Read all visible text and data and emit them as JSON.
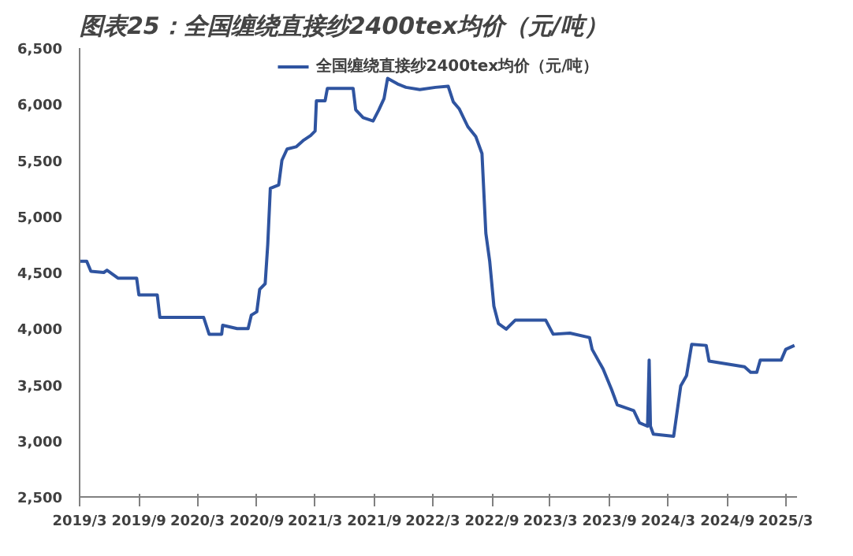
{
  "chart_data": {
    "type": "line",
    "title": "图表25：全国缠绕直接纱2400tex均价（元/吨）",
    "series": [
      {
        "name": "全国缠绕直接纱2400tex均价（元/吨）",
        "color": "#2f54a0",
        "x": [
          "2019-03-01",
          "2019-03-23",
          "2019-04-05",
          "2019-05-15",
          "2019-05-25",
          "2019-06-28",
          "2019-08-25",
          "2019-09-01",
          "2019-10-28",
          "2019-11-05",
          "2020-03-20",
          "2020-04-06",
          "2020-05-15",
          "2020-05-18",
          "2020-07-02",
          "2020-08-05",
          "2020-08-15",
          "2020-09-01",
          "2020-09-10",
          "2020-09-27",
          "2020-10-05",
          "2020-10-13",
          "2020-11-08",
          "2020-11-18",
          "2020-12-04",
          "2021-01-01",
          "2021-01-25",
          "2021-02-15",
          "2021-03-01",
          "2021-03-05",
          "2021-04-01",
          "2021-04-08",
          "2021-06-27",
          "2021-07-05",
          "2021-07-28",
          "2021-08-28",
          "2021-09-15",
          "2021-10-01",
          "2021-10-12",
          "2021-11-12",
          "2021-12-08",
          "2022-01-20",
          "2022-03-10",
          "2022-04-18",
          "2022-05-04",
          "2022-05-22",
          "2022-06-18",
          "2022-07-13",
          "2022-08-01",
          "2022-08-13",
          "2022-08-25",
          "2022-09-07",
          "2022-09-21",
          "2022-10-15",
          "2022-11-12",
          "2023-02-15",
          "2023-03-10",
          "2023-05-01",
          "2023-07-01",
          "2023-07-09",
          "2023-08-12",
          "2023-09-07",
          "2023-09-25",
          "2023-11-15",
          "2023-12-03",
          "2023-12-28",
          "2024-01-02",
          "2024-01-06",
          "2024-01-15",
          "2024-03-18",
          "2024-04-09",
          "2024-04-27",
          "2024-05-13",
          "2024-06-27",
          "2024-07-06",
          "2024-10-24",
          "2024-11-12",
          "2024-12-01",
          "2024-12-12",
          "2025-02-15",
          "2025-03-01",
          "2025-03-28"
        ],
        "values": [
          4600,
          4600,
          4510,
          4500,
          4520,
          4450,
          4450,
          4300,
          4300,
          4100,
          4100,
          3950,
          3950,
          4030,
          4000,
          4000,
          4120,
          4150,
          4350,
          4400,
          4750,
          5250,
          5280,
          5500,
          5600,
          5620,
          5680,
          5720,
          5760,
          6030,
          6030,
          6140,
          6140,
          5950,
          5880,
          5850,
          5950,
          6050,
          6230,
          6180,
          6150,
          6130,
          6150,
          6160,
          6020,
          5960,
          5800,
          5710,
          5560,
          4850,
          4600,
          4200,
          4045,
          3995,
          4075,
          4075,
          3950,
          3960,
          3920,
          3815,
          3640,
          3460,
          3320,
          3270,
          3160,
          3130,
          3720,
          3130,
          3060,
          3040,
          3490,
          3580,
          3860,
          3850,
          3710,
          3660,
          3610,
          3610,
          3720,
          3720,
          3815,
          3850
        ]
      }
    ],
    "xlim": [
      "2019-03-01",
      "2025-04-05"
    ],
    "xticks": [
      {
        "value": "2019-03-01",
        "label": "2019/3"
      },
      {
        "value": "2019-09-01",
        "label": "2019/9"
      },
      {
        "value": "2020-03-01",
        "label": "2020/3"
      },
      {
        "value": "2020-09-01",
        "label": "2020/9"
      },
      {
        "value": "2021-03-01",
        "label": "2021/3"
      },
      {
        "value": "2021-09-01",
        "label": "2021/9"
      },
      {
        "value": "2022-03-01",
        "label": "2022/3"
      },
      {
        "value": "2022-09-01",
        "label": "2022/9"
      },
      {
        "value": "2023-03-01",
        "label": "2023/3"
      },
      {
        "value": "2023-09-01",
        "label": "2023/9"
      },
      {
        "value": "2024-03-01",
        "label": "2024/3"
      },
      {
        "value": "2024-09-01",
        "label": "2024/9"
      },
      {
        "value": "2025-03-01",
        "label": "2025/3"
      }
    ],
    "ylim": [
      2500,
      6500
    ],
    "yticks": [
      {
        "value": 2500,
        "label": "2,500"
      },
      {
        "value": 3000,
        "label": "3,000"
      },
      {
        "value": 3500,
        "label": "3,500"
      },
      {
        "value": 4000,
        "label": "4,000"
      },
      {
        "value": 4500,
        "label": "4,500"
      },
      {
        "value": 5000,
        "label": "5,000"
      },
      {
        "value": 5500,
        "label": "5,500"
      },
      {
        "value": 6000,
        "label": "6,000"
      },
      {
        "value": 6500,
        "label": "6,500"
      }
    ],
    "legend": "top",
    "grid": false,
    "marker": "none",
    "line_style": "solid"
  }
}
